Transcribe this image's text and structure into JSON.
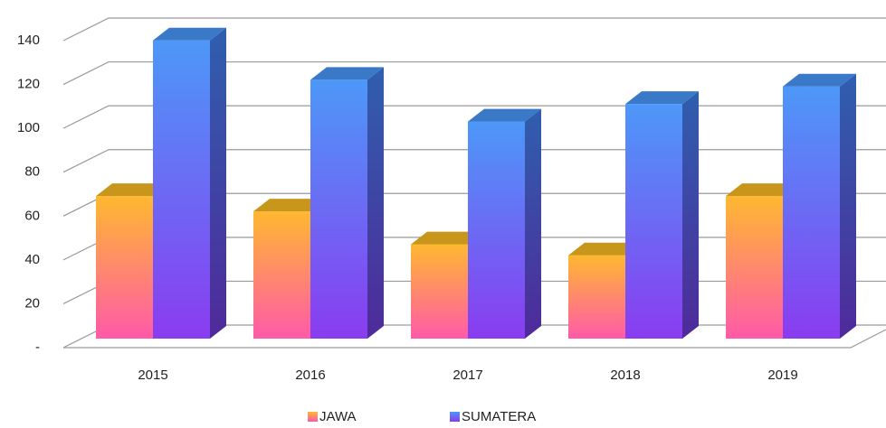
{
  "chart_data": {
    "type": "bar3d",
    "categories": [
      "2015",
      "2016",
      "2017",
      "2018",
      "2019"
    ],
    "series": [
      {
        "name": "JAWA",
        "color": "#ffb830",
        "values": [
          65,
          58,
          43,
          38,
          65
        ]
      },
      {
        "name": "SUMATERA",
        "color": "#4d98f8",
        "values": [
          136,
          118,
          99,
          107,
          115
        ]
      }
    ],
    "ylim": [
      0,
      140
    ],
    "yticks": [
      {
        "value": 0,
        "label": "-"
      },
      20,
      40,
      60,
      80,
      100,
      120,
      140
    ],
    "grid": true,
    "legend": "bottom"
  }
}
